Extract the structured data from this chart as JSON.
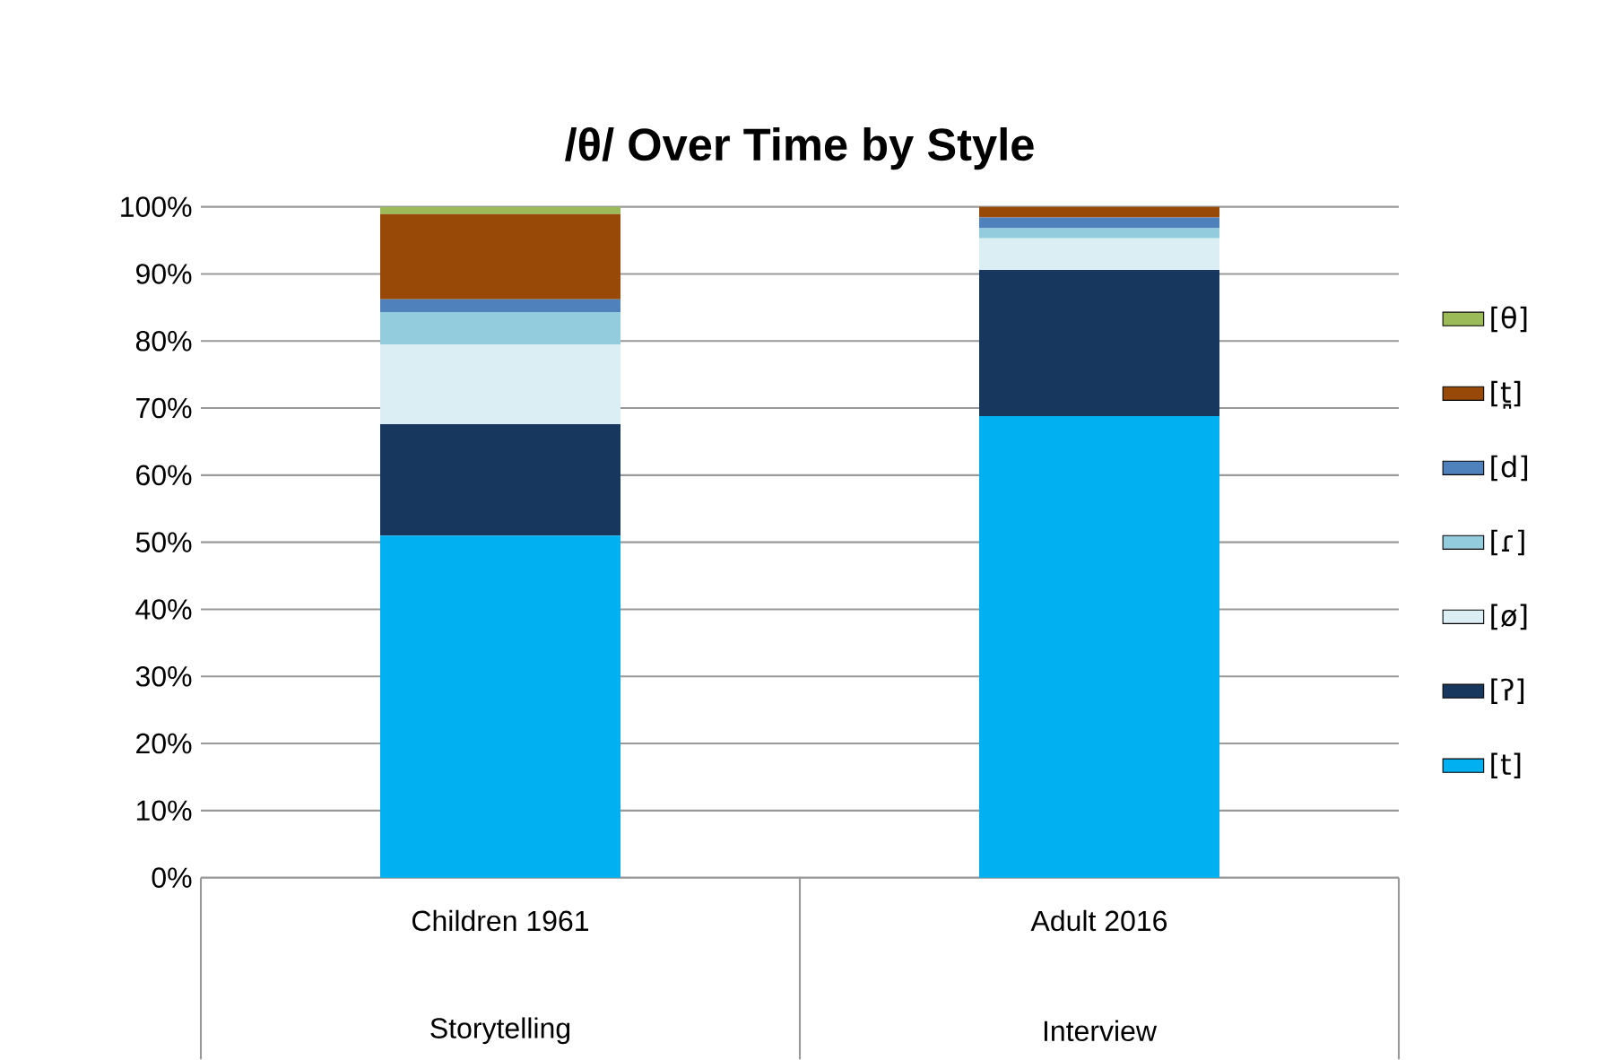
{
  "chart_data": {
    "type": "bar",
    "title": "/θ/ Over Time by Style",
    "stacked": true,
    "categories": [
      "Children 1961",
      "Adult 2016"
    ],
    "annotations": [
      "Storytelling",
      "Interview"
    ],
    "series": [
      {
        "name": "[t]",
        "color": "#00b0f0",
        "values": [
          51.0,
          68.8
        ]
      },
      {
        "name": "[ʔ]",
        "color": "#17375e",
        "values": [
          16.6,
          21.8
        ]
      },
      {
        "name": "[ø]",
        "color": "#dbeef4",
        "values": [
          11.9,
          4.7
        ]
      },
      {
        "name": "[ɾ]",
        "color": "#93cddd",
        "values": [
          4.8,
          1.5
        ]
      },
      {
        "name": "[d]",
        "color": "#4f81bd",
        "values": [
          1.9,
          1.6
        ]
      },
      {
        "name": "[t̪]",
        "color": "#984807",
        "values": [
          12.7,
          1.6
        ]
      },
      {
        "name": "[θ]",
        "color": "#9bbb59",
        "values": [
          1.1,
          0
        ]
      }
    ],
    "ylim": [
      0,
      100
    ],
    "yticks": [
      {
        "value": 0,
        "label": "0%"
      },
      {
        "value": 10,
        "label": "10%"
      },
      {
        "value": 20,
        "label": "20%"
      },
      {
        "value": 30,
        "label": "30%"
      },
      {
        "value": 40,
        "label": "40%"
      },
      {
        "value": 50,
        "label": "50%"
      },
      {
        "value": 60,
        "label": "60%"
      },
      {
        "value": 70,
        "label": "70%"
      },
      {
        "value": 80,
        "label": "80%"
      },
      {
        "value": 90,
        "label": "90%"
      },
      {
        "value": 100,
        "label": "100%"
      }
    ],
    "grid": "y",
    "legend": "right"
  }
}
